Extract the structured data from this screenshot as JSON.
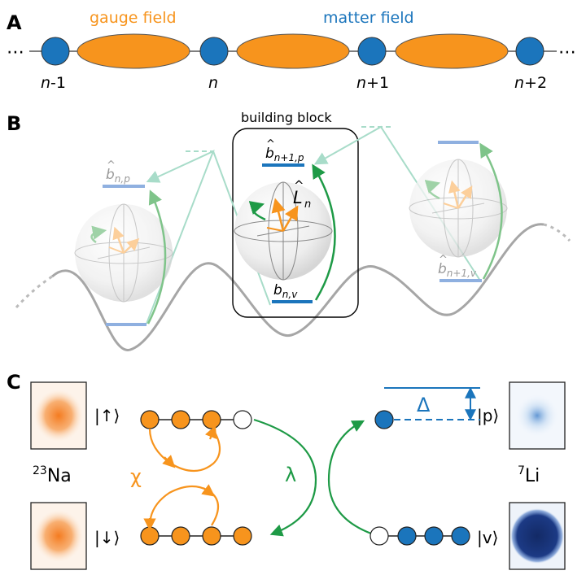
{
  "panel_a": {
    "label": "A",
    "gauge_label": "gauge field",
    "matter_label": "matter field",
    "ellipsis_left": "⋯",
    "ellipsis_right": "⋯",
    "site_labels": [
      {
        "base": "n",
        "suffix": "-1"
      },
      {
        "base": "n",
        "suffix": ""
      },
      {
        "base": "n",
        "suffix": "+1"
      },
      {
        "base": "n",
        "suffix": "+2"
      }
    ]
  },
  "panel_b": {
    "label": "B",
    "building_block_label": "building block",
    "operator_L": "L",
    "operator_L_sub": "n",
    "levels": {
      "b_n_p": {
        "base": "b",
        "sub": "n,p"
      },
      "b_n1_p": {
        "base": "b",
        "sub": "n+1,p"
      },
      "b_n_v": {
        "base": "b",
        "sub": "n,v"
      },
      "b_n1_v": {
        "base": "b",
        "sub": "n+1,v"
      }
    }
  },
  "panel_c": {
    "label": "C",
    "na_species": {
      "sup": "23",
      "name": "Na"
    },
    "li_species": {
      "sup": "7",
      "name": "Li"
    },
    "ket_up": "|↑⟩",
    "ket_down": "|↓⟩",
    "ket_p": "|p⟩",
    "ket_v": "|v⟩",
    "chi": "χ",
    "lambda": "λ",
    "delta": "Δ"
  },
  "colors": {
    "orange": "#f7941d",
    "blue": "#1b75bc",
    "dark_blue": "#1c2f6e",
    "green": "#1e9a46",
    "light_green": "#7fc48a",
    "mint": "#a8dcc9",
    "light_blue_level": "#8fb0e0",
    "gray": "#a6a6a6"
  }
}
